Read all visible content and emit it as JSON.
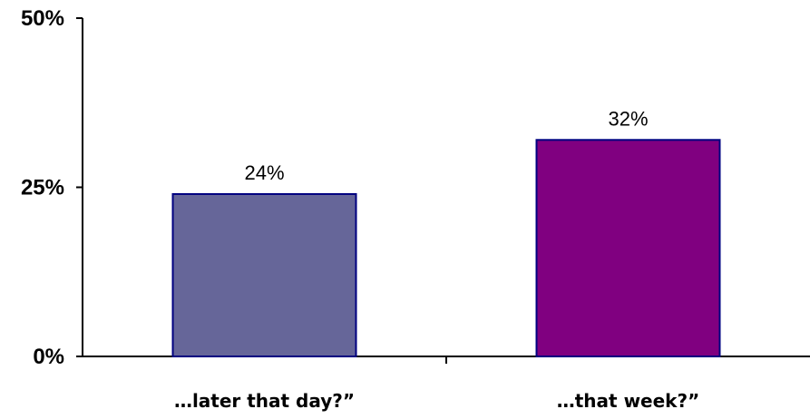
{
  "chart_data": {
    "type": "bar",
    "categories": [
      "…later that day?”",
      "…that week?”"
    ],
    "values": [
      24,
      32
    ],
    "data_labels": [
      "24%",
      "32%"
    ],
    "ylim": [
      0,
      50
    ],
    "yticks": [
      {
        "value": 0,
        "label": "0%"
      },
      {
        "value": 25,
        "label": "25%"
      },
      {
        "value": 50,
        "label": "50%"
      }
    ],
    "bar_colors": [
      "#666699",
      "#800080"
    ],
    "bar_edge_color": "#000080",
    "grid": false,
    "legend": false,
    "title": "",
    "xlabel": "",
    "ylabel": ""
  }
}
